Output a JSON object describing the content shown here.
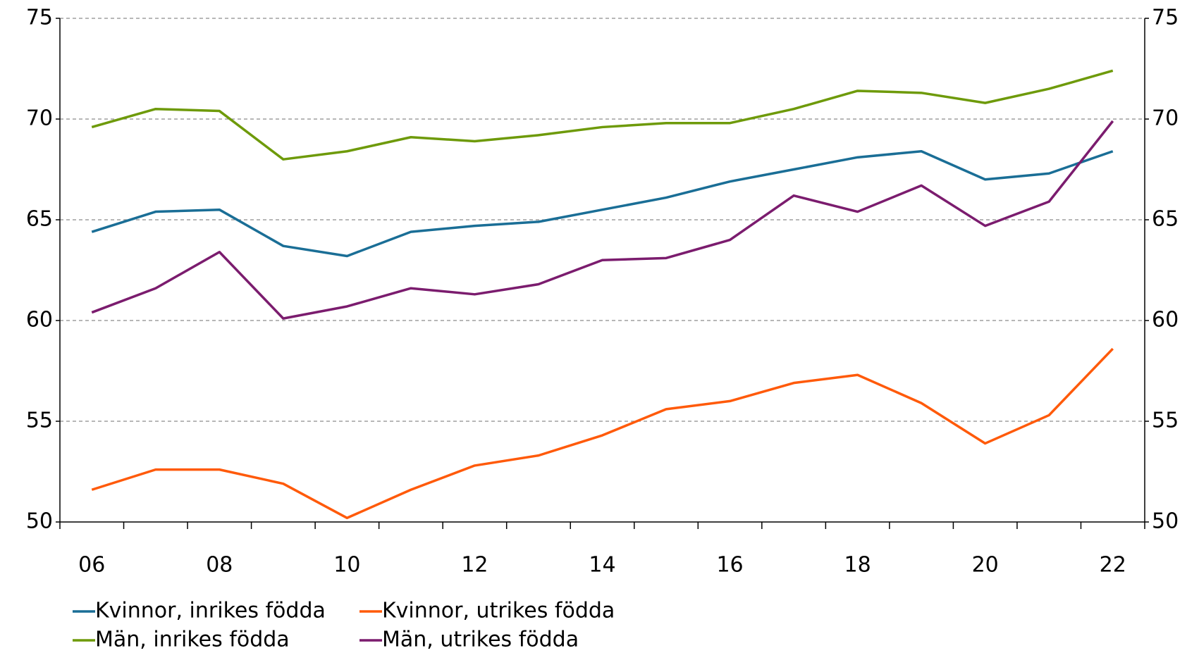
{
  "chart_data": {
    "type": "line",
    "categories": [
      "06",
      null,
      "08",
      null,
      "10",
      null,
      "12",
      null,
      "14",
      null,
      "16",
      null,
      "18",
      null,
      "20",
      null,
      "22"
    ],
    "series": [
      {
        "name": "Kvinnor, inrikes födda",
        "color": "#1a6e96",
        "values": [
          64.4,
          65.4,
          65.5,
          63.7,
          63.2,
          64.4,
          64.7,
          64.9,
          65.5,
          66.1,
          66.9,
          67.5,
          68.1,
          68.4,
          67.0,
          67.3,
          68.4
        ]
      },
      {
        "name": "Kvinnor, utrikes födda",
        "color": "#ff5a0a",
        "values": [
          51.6,
          52.6,
          52.6,
          51.9,
          50.2,
          51.6,
          52.8,
          53.3,
          54.3,
          55.6,
          56.0,
          56.9,
          57.3,
          55.9,
          53.9,
          55.3,
          58.6
        ]
      },
      {
        "name": "Män, inrikes födda",
        "color": "#6e9a0a",
        "values": [
          69.6,
          70.5,
          70.4,
          68.0,
          68.4,
          69.1,
          68.9,
          69.2,
          69.6,
          69.8,
          69.8,
          70.5,
          71.4,
          71.3,
          70.8,
          71.5,
          72.4
        ]
      },
      {
        "name": "Män, utrikes födda",
        "color": "#7b1c6e",
        "values": [
          60.4,
          61.6,
          63.4,
          60.1,
          60.7,
          61.6,
          61.3,
          61.8,
          63.0,
          63.1,
          64.0,
          66.2,
          65.4,
          66.7,
          64.7,
          65.9,
          69.9
        ]
      }
    ],
    "ylim": [
      50,
      75
    ],
    "yticks": [
      50,
      55,
      60,
      65,
      70,
      75
    ],
    "y2lim": [
      50,
      75
    ],
    "y2ticks": [
      50,
      55,
      60,
      65,
      70,
      75
    ],
    "grid": true,
    "legend": "bottom"
  }
}
